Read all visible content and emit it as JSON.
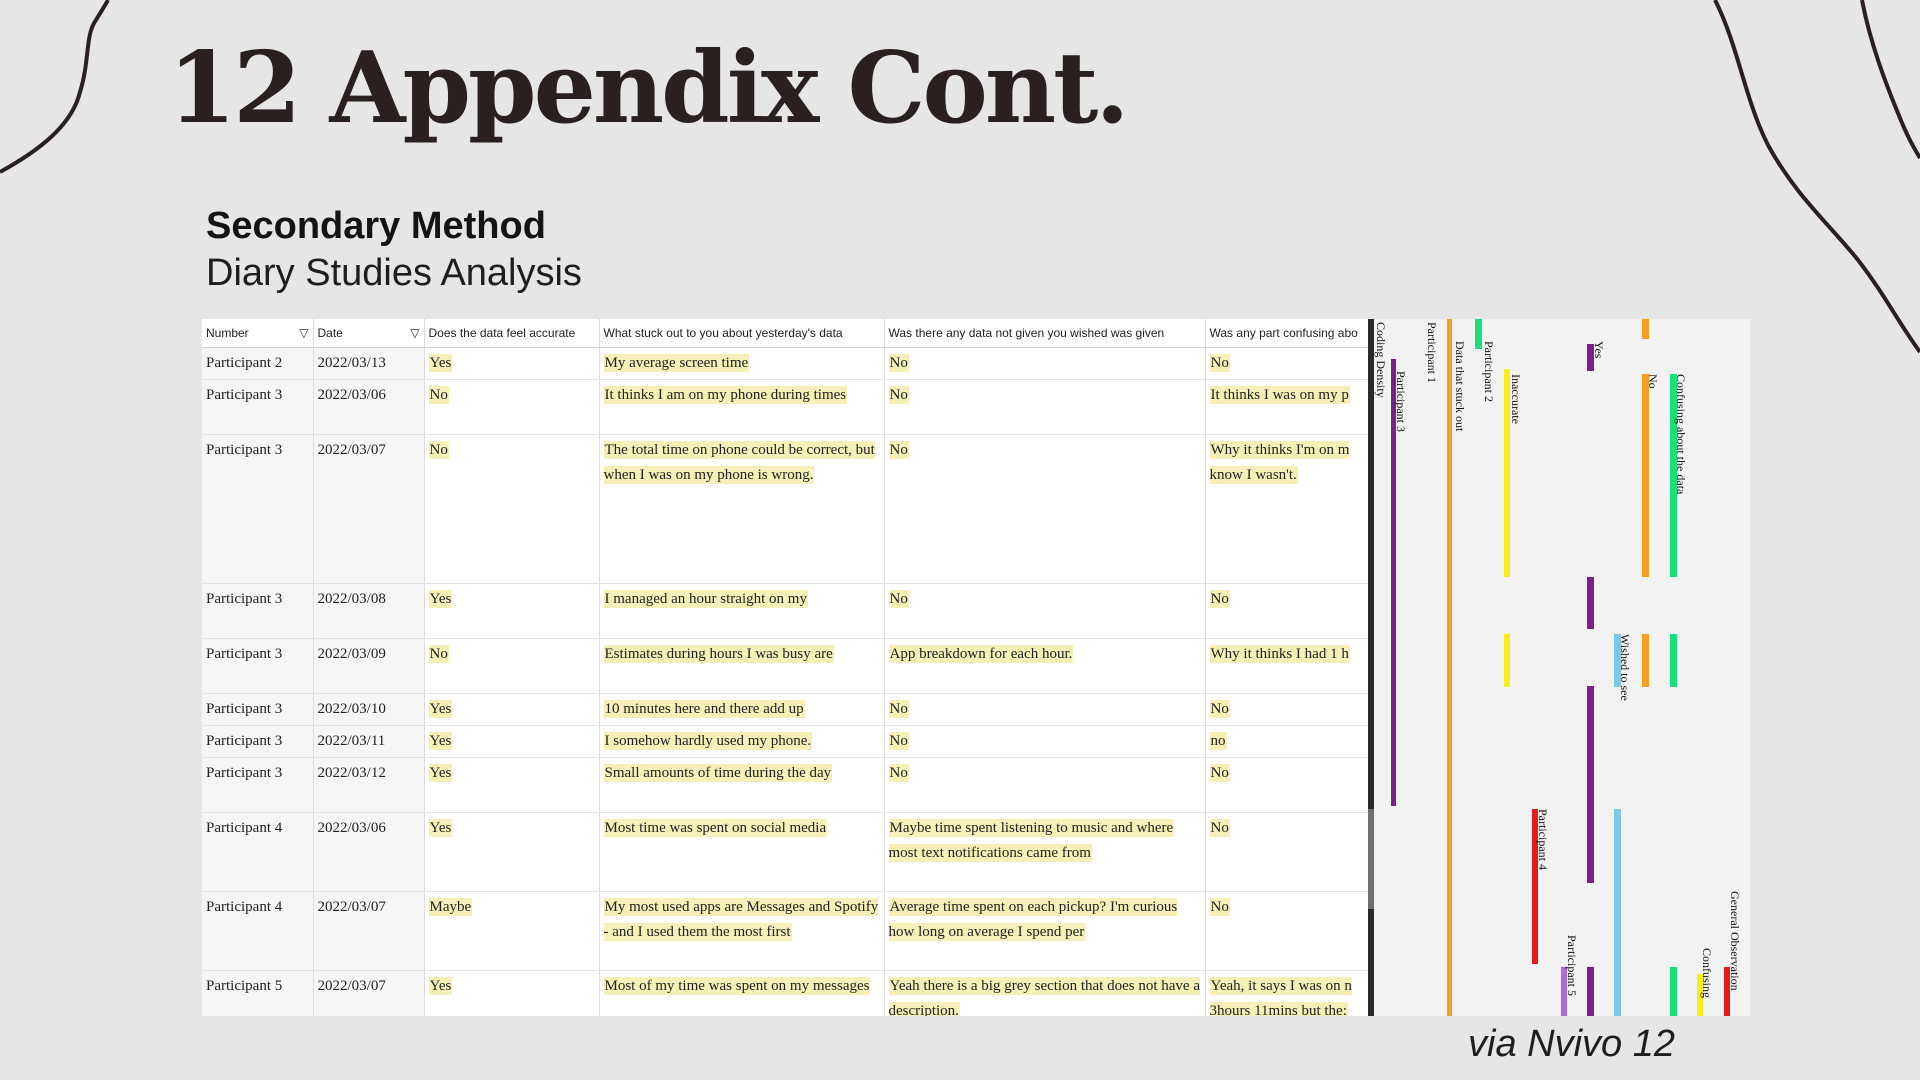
{
  "slide": {
    "title": "12 Appendix Cont.",
    "subtitle_bold": "Secondary Method",
    "subtitle": "Diary Studies Analysis",
    "footer": "via Nvivo 12"
  },
  "table": {
    "columns": [
      {
        "label": "Number",
        "filter": true
      },
      {
        "label": "Date",
        "filter": true
      },
      {
        "label": "Does the data feel accurate",
        "filter": false
      },
      {
        "label": "What stuck out to you about yesterday's data",
        "filter": false
      },
      {
        "label": "Was there any data not given you wished was given",
        "filter": false
      },
      {
        "label": "Was any part confusing abo",
        "filter": false
      }
    ],
    "filter_icon": "funnel-icon",
    "rows": [
      {
        "number": "Participant 2",
        "date": "2022/03/13",
        "accurate": "Yes",
        "stuck": "My average screen time",
        "wished": "No",
        "confusing": "No"
      },
      {
        "number": "Participant 3",
        "date": "2022/03/06",
        "accurate": "No",
        "stuck": "It thinks I am on my phone during times",
        "wished": "No",
        "confusing": "It thinks I was on my p"
      },
      {
        "number": "Participant 3",
        "date": "2022/03/07",
        "accurate": "No",
        "stuck": "The total time on phone could be correct, but when I was on my phone is wrong.",
        "wished": "No",
        "confusing": "Why it thinks I'm on m know I wasn't."
      },
      {
        "number": "Participant 3",
        "date": "2022/03/08",
        "accurate": "Yes",
        "stuck": "I managed an hour straight on my",
        "wished": "No",
        "confusing": "No"
      },
      {
        "number": "Participant 3",
        "date": "2022/03/09",
        "accurate": "No",
        "stuck": "Estimates during hours I was busy are",
        "wished": "App breakdown for each hour.",
        "confusing": "Why it thinks I had 1 h"
      },
      {
        "number": "Participant 3",
        "date": "2022/03/10",
        "accurate": "Yes",
        "stuck": "10 minutes here and there add up",
        "wished": "No",
        "confusing": "No"
      },
      {
        "number": "Participant 3",
        "date": "2022/03/11",
        "accurate": "Yes",
        "stuck": "I somehow hardly used my phone.",
        "wished": "No",
        "confusing": "no"
      },
      {
        "number": "Participant 3",
        "date": "2022/03/12",
        "accurate": "Yes",
        "stuck": "Small amounts of time during the day",
        "wished": "No",
        "confusing": "No"
      },
      {
        "number": "Participant 4",
        "date": "2022/03/06",
        "accurate": "Yes",
        "stuck": "Most time was spent on social media",
        "wished": "Maybe time spent listening to music and where most text notifications came from",
        "confusing": "No"
      },
      {
        "number": "Participant 4",
        "date": "2022/03/07",
        "accurate": "Maybe",
        "stuck": "My most used apps are Messages and Spotify - and I used them the most first",
        "wished": "Average time spent on each pickup? I'm curious how long on average I spend per",
        "confusing": "No"
      },
      {
        "number": "Participant 5",
        "date": "2022/03/07",
        "accurate": "Yes",
        "stuck": "Most of my time was spent on my messages",
        "wished": "Yeah there is a big grey section that does not have a description.",
        "confusing": "Yeah, it says I was on n 3hours 11mins but the:"
      }
    ]
  },
  "coding_stripes": [
    {
      "label": "Coding Density",
      "color": "#2a2a2a"
    },
    {
      "label": "Participant 3",
      "color": "#7c1f8e"
    },
    {
      "label": "Participant 1",
      "color": "#f5a020"
    },
    {
      "label": "Data that stuck out",
      "color": "#f5a020"
    },
    {
      "label": "Participant 2",
      "color": "#19e07a"
    },
    {
      "label": "Inaccurate",
      "color": "#f7ef1d"
    },
    {
      "label": "Participant 4",
      "color": "#e51b1b"
    },
    {
      "label": "Participant 5",
      "color": "#b169d6"
    },
    {
      "label": "Yes",
      "color": "#7c1f8e"
    },
    {
      "label": "Wished to see",
      "color": "#7fc6e8"
    },
    {
      "label": "No",
      "color": "#f5a020"
    },
    {
      "label": "Confusing about the data",
      "color": "#19e07a"
    },
    {
      "label": "Confusing",
      "color": "#f7ef1d"
    },
    {
      "label": "General Observation",
      "color": "#e51b1b"
    }
  ]
}
